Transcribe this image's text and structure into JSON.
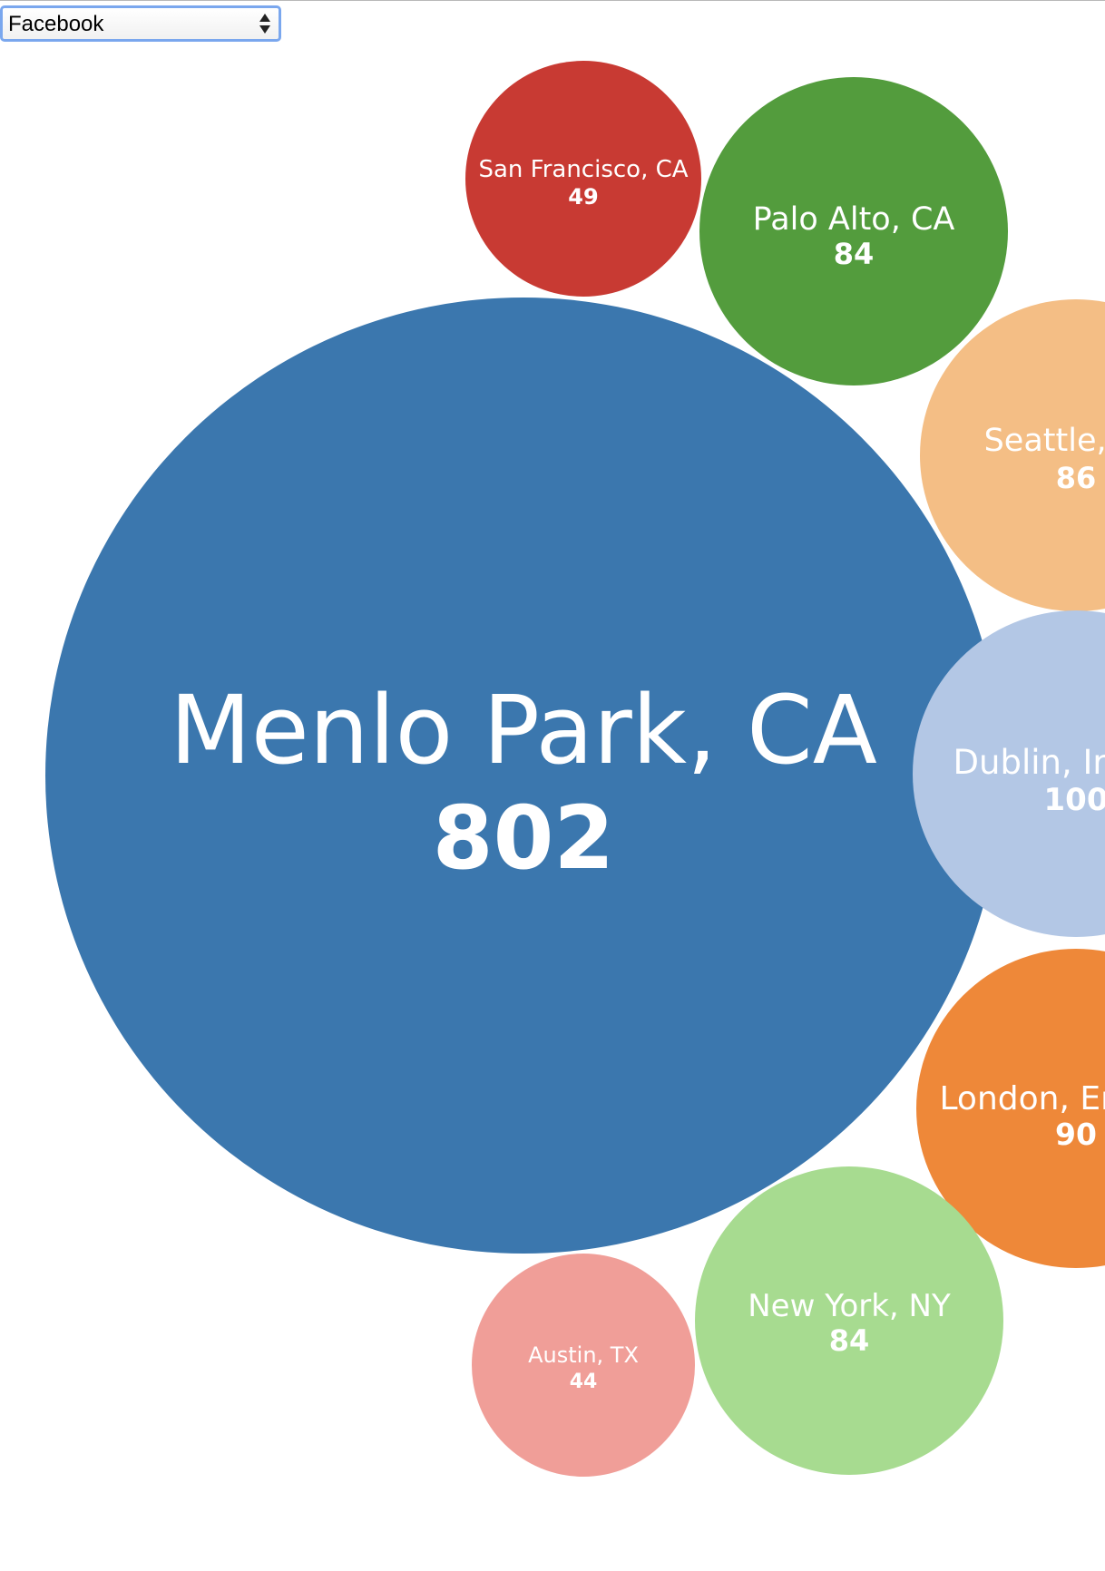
{
  "selector": {
    "selected": "Facebook",
    "options": [
      "Facebook"
    ]
  },
  "chart_data": {
    "type": "bubble",
    "title": "",
    "series": [
      {
        "name": "Menlo Park, CA",
        "value": 802,
        "color": "#3b77ae"
      },
      {
        "name": "San Francisco, CA",
        "value": 49,
        "color": "#c83a33"
      },
      {
        "name": "Palo Alto, CA",
        "value": 84,
        "color": "#539c3d"
      },
      {
        "name": "Seattle, WA",
        "value": 86,
        "color": "#f4be85"
      },
      {
        "name": "Dublin, Ireland",
        "value": 100,
        "color": "#b3c7e5"
      },
      {
        "name": "London, England",
        "value": 90,
        "color": "#ee8839"
      },
      {
        "name": "New York, NY",
        "value": 84,
        "color": "#a7db90"
      },
      {
        "name": "Austin, TX",
        "value": 44,
        "color": "#f09e98"
      }
    ]
  }
}
